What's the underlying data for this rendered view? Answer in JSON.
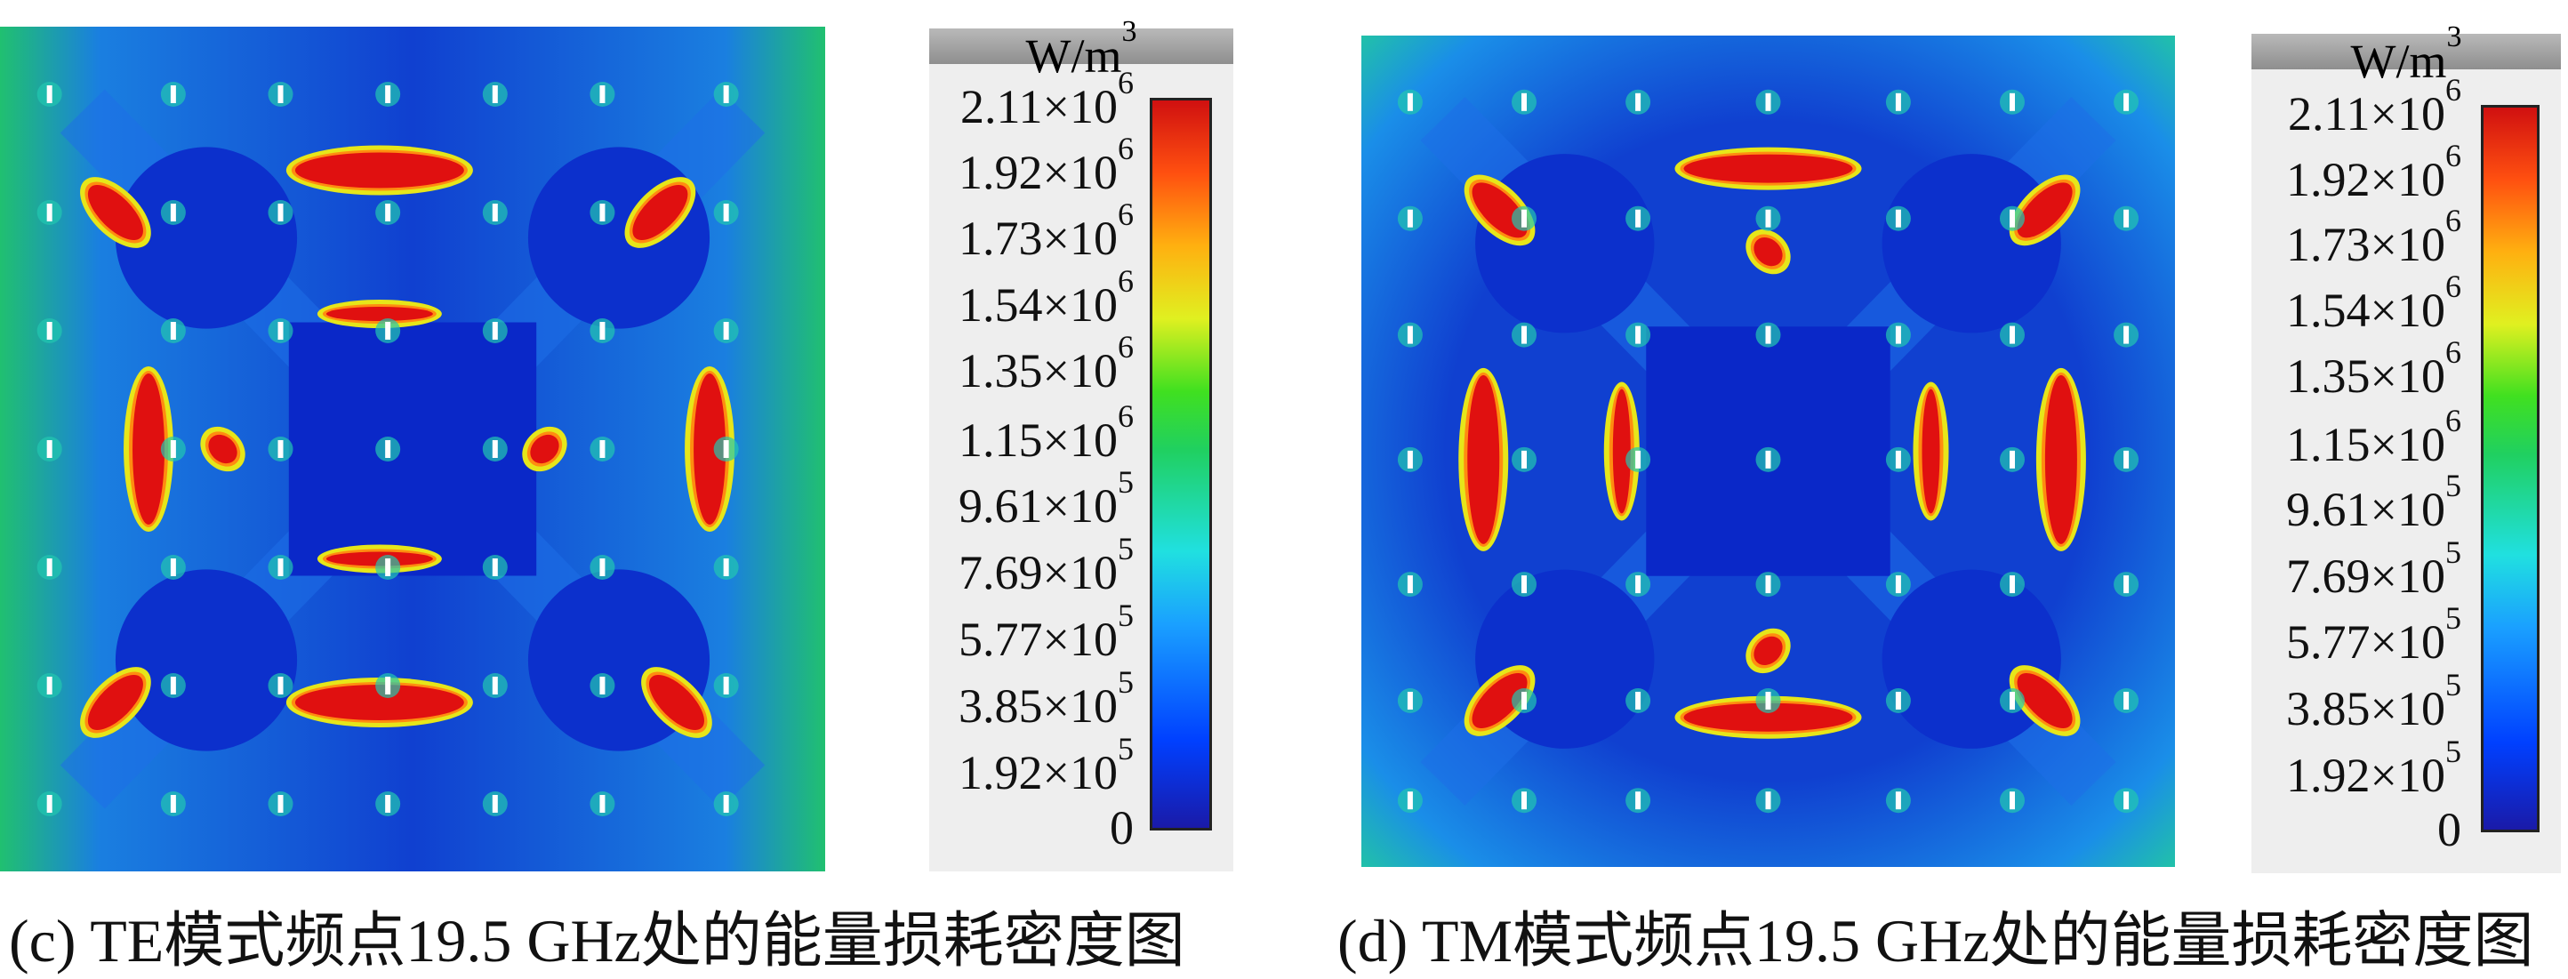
{
  "chart_data": [
    {
      "type": "heatmap",
      "title": "",
      "caption": "(c) TE模式频点19.5 GHz处的能量损耗密度图",
      "units": "W/m",
      "units_exponent": "3",
      "colorbar_range": [
        0,
        2110000
      ],
      "colorbar_ticks": [
        {
          "value": 2110000,
          "mantissa": "2.11",
          "exponent": "6"
        },
        {
          "value": 1920000,
          "mantissa": "1.92",
          "exponent": "6"
        },
        {
          "value": 1730000,
          "mantissa": "1.73",
          "exponent": "6"
        },
        {
          "value": 1540000,
          "mantissa": "1.54",
          "exponent": "6"
        },
        {
          "value": 1350000,
          "mantissa": "1.35",
          "exponent": "6"
        },
        {
          "value": 1150000,
          "mantissa": "1.15",
          "exponent": "6"
        },
        {
          "value": 961000,
          "mantissa": "9.61",
          "exponent": "5"
        },
        {
          "value": 769000,
          "mantissa": "7.69",
          "exponent": "5"
        },
        {
          "value": 577000,
          "mantissa": "5.77",
          "exponent": "5"
        },
        {
          "value": 385000,
          "mantissa": "3.85",
          "exponent": "5"
        },
        {
          "value": 192000,
          "mantissa": "1.92",
          "exponent": "5"
        },
        {
          "value": 0,
          "mantissa": "0",
          "exponent": ""
        }
      ],
      "mode": "TE"
    },
    {
      "type": "heatmap",
      "title": "",
      "caption": "(d) TM模式频点19.5 GHz处的能量损耗密度图",
      "units": "W/m",
      "units_exponent": "3",
      "colorbar_range": [
        0,
        2110000
      ],
      "colorbar_ticks": [
        {
          "value": 2110000,
          "mantissa": "2.11",
          "exponent": "6"
        },
        {
          "value": 1920000,
          "mantissa": "1.92",
          "exponent": "6"
        },
        {
          "value": 1730000,
          "mantissa": "1.73",
          "exponent": "6"
        },
        {
          "value": 1540000,
          "mantissa": "1.54",
          "exponent": "6"
        },
        {
          "value": 1350000,
          "mantissa": "1.35",
          "exponent": "6"
        },
        {
          "value": 1150000,
          "mantissa": "1.15",
          "exponent": "6"
        },
        {
          "value": 961000,
          "mantissa": "9.61",
          "exponent": "5"
        },
        {
          "value": 769000,
          "mantissa": "7.69",
          "exponent": "5"
        },
        {
          "value": 577000,
          "mantissa": "5.77",
          "exponent": "5"
        },
        {
          "value": 385000,
          "mantissa": "3.85",
          "exponent": "5"
        },
        {
          "value": 192000,
          "mantissa": "1.92",
          "exponent": "5"
        },
        {
          "value": 0,
          "mantissa": "0",
          "exponent": ""
        }
      ],
      "mode": "TM"
    }
  ],
  "colors": {
    "low": "#0b33cc",
    "c1": "#0a66ff",
    "c2": "#18c8e8",
    "c3": "#2ad85a",
    "c4": "#e6e61a",
    "c5": "#ff8c10",
    "high": "#e01010",
    "pin": "#ffffff"
  }
}
